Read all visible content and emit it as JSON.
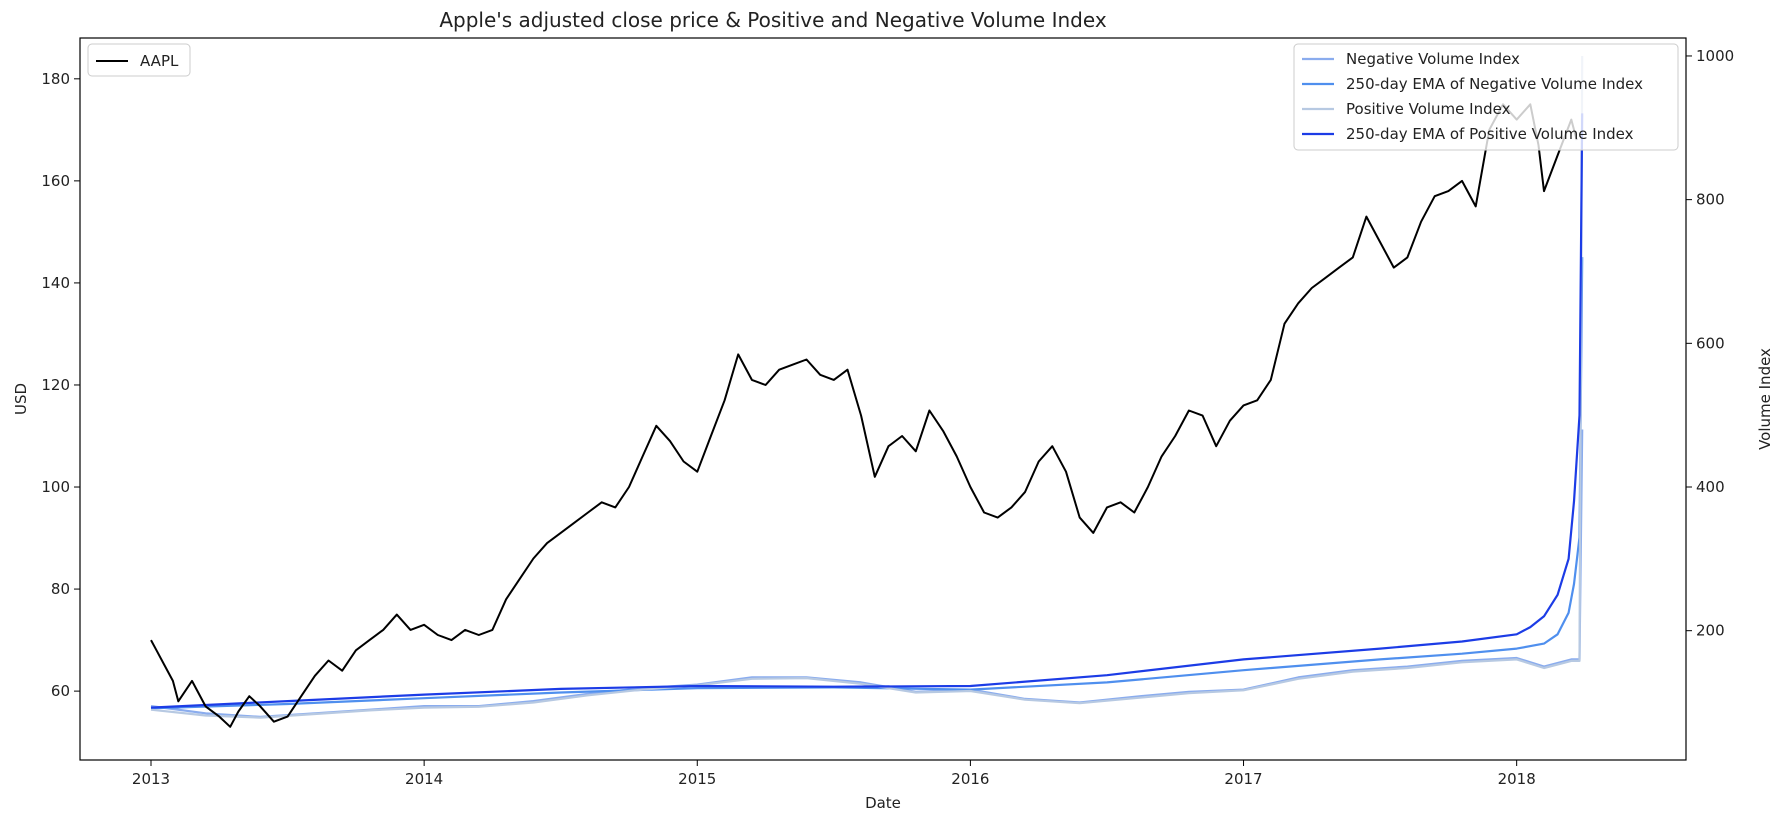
{
  "chart_data": {
    "type": "line",
    "title": "Apple's adjusted close price & Positive and Negative Volume Index",
    "xlabel": "Date",
    "ylabel": "USD",
    "y2label": "Volume Index",
    "xlim": [
      2012.74,
      2018.62
    ],
    "ylim": [
      46.5,
      188
    ],
    "y2lim": [
      20,
      1025
    ],
    "x_ticks": [
      2013,
      2014,
      2015,
      2016,
      2017,
      2018
    ],
    "x_tick_labels": [
      "2013",
      "2014",
      "2015",
      "2016",
      "2017",
      "2018"
    ],
    "y_ticks": [
      60,
      80,
      100,
      120,
      140,
      160,
      180
    ],
    "y2_ticks": [
      200,
      400,
      600,
      800,
      1000
    ],
    "grid": false,
    "legend_left": {
      "placement": "upper-left",
      "entries": [
        "AAPL"
      ]
    },
    "legend_right": {
      "placement": "upper-right",
      "entries": [
        "Negative Volume Index",
        "250-day EMA of Negative Volume Index",
        "Positive Volume Index",
        "250-day EMA of Positive Volume Index"
      ]
    },
    "series": [
      {
        "name": "AAPL",
        "axis": "left",
        "color": "#000000",
        "x": [
          2013.0,
          2013.02,
          2013.05,
          2013.08,
          2013.1,
          2013.15,
          2013.2,
          2013.25,
          2013.29,
          2013.32,
          2013.36,
          2013.4,
          2013.45,
          2013.5,
          2013.55,
          2013.6,
          2013.65,
          2013.7,
          2013.75,
          2013.8,
          2013.85,
          2013.9,
          2013.95,
          2014.0,
          2014.05,
          2014.1,
          2014.15,
          2014.2,
          2014.25,
          2014.3,
          2014.35,
          2014.4,
          2014.45,
          2014.5,
          2014.55,
          2014.6,
          2014.65,
          2014.7,
          2014.75,
          2014.8,
          2014.85,
          2014.9,
          2014.95,
          2015.0,
          2015.05,
          2015.1,
          2015.15,
          2015.2,
          2015.25,
          2015.3,
          2015.35,
          2015.4,
          2015.45,
          2015.5,
          2015.55,
          2015.6,
          2015.65,
          2015.7,
          2015.75,
          2015.8,
          2015.85,
          2015.9,
          2015.95,
          2016.0,
          2016.05,
          2016.1,
          2016.15,
          2016.2,
          2016.25,
          2016.3,
          2016.35,
          2016.4,
          2016.45,
          2016.5,
          2016.55,
          2016.6,
          2016.65,
          2016.7,
          2016.75,
          2016.8,
          2016.85,
          2016.9,
          2016.95,
          2017.0,
          2017.05,
          2017.1,
          2017.15,
          2017.2,
          2017.25,
          2017.3,
          2017.35,
          2017.4,
          2017.45,
          2017.5,
          2017.55,
          2017.6,
          2017.65,
          2017.7,
          2017.75,
          2017.8,
          2017.85,
          2017.9,
          2017.95,
          2018.0,
          2018.05,
          2018.08,
          2018.1,
          2018.15,
          2018.2,
          2018.22
        ],
        "y": [
          70,
          68,
          65,
          62,
          58,
          62,
          57,
          55,
          53,
          56,
          59,
          57,
          54,
          55,
          59,
          63,
          66,
          64,
          68,
          70,
          72,
          75,
          72,
          73,
          71,
          70,
          72,
          71,
          72,
          78,
          82,
          86,
          89,
          91,
          93,
          95,
          97,
          96,
          100,
          106,
          112,
          109,
          105,
          103,
          110,
          117,
          126,
          121,
          120,
          123,
          124,
          125,
          122,
          121,
          123,
          114,
          102,
          108,
          110,
          107,
          115,
          111,
          106,
          100,
          95,
          94,
          96,
          99,
          105,
          108,
          103,
          94,
          91,
          96,
          97,
          95,
          100,
          106,
          110,
          115,
          114,
          108,
          113,
          116,
          117,
          121,
          132,
          136,
          139,
          141,
          143,
          145,
          153,
          148,
          143,
          145,
          152,
          157,
          158,
          160,
          155,
          170,
          175,
          172,
          175,
          167,
          158,
          165,
          172,
          168
        ]
      },
      {
        "name": "Negative Volume Index",
        "axis": "right",
        "color": "#8aacee",
        "x": [
          2013.0,
          2013.2,
          2013.4,
          2013.6,
          2013.8,
          2014.0,
          2014.2,
          2014.4,
          2014.6,
          2014.8,
          2015.0,
          2015.2,
          2015.4,
          2015.6,
          2015.8,
          2016.0,
          2016.2,
          2016.4,
          2016.6,
          2016.8,
          2017.0,
          2017.2,
          2017.4,
          2017.6,
          2017.8,
          2018.0,
          2018.1,
          2018.2,
          2018.23,
          2018.24
        ],
        "y": [
          95,
          85,
          80,
          85,
          90,
          95,
          95,
          102,
          112,
          120,
          125,
          135,
          135,
          128,
          115,
          118,
          105,
          100,
          108,
          115,
          118,
          135,
          145,
          150,
          158,
          162,
          150,
          160,
          160,
          480
        ]
      },
      {
        "name": "250-day EMA of Negative Volume Index",
        "axis": "right",
        "color": "#4f8fee",
        "x": [
          2013.0,
          2013.5,
          2014.0,
          2014.5,
          2015.0,
          2015.5,
          2016.0,
          2016.5,
          2017.0,
          2017.5,
          2017.8,
          2018.0,
          2018.1,
          2018.15,
          2018.19,
          2018.21,
          2018.23,
          2018.24
        ],
        "y": [
          92,
          98,
          106,
          114,
          120,
          121,
          118,
          128,
          145,
          160,
          168,
          175,
          182,
          195,
          225,
          265,
          330,
          720
        ]
      },
      {
        "name": "Positive Volume Index",
        "axis": "right",
        "color": "#b7c9e2",
        "x": [
          2013.0,
          2013.2,
          2013.4,
          2013.6,
          2013.8,
          2014.0,
          2014.2,
          2014.4,
          2014.6,
          2014.8,
          2015.0,
          2015.2,
          2015.4,
          2015.6,
          2015.8,
          2016.0,
          2016.2,
          2016.4,
          2016.6,
          2016.8,
          2017.0,
          2017.2,
          2017.4,
          2017.6,
          2017.8,
          2018.0,
          2018.1,
          2018.2,
          2018.23,
          2018.24
        ],
        "y": [
          90,
          82,
          79,
          84,
          89,
          93,
          94,
          100,
          110,
          118,
          124,
          133,
          134,
          126,
          114,
          116,
          104,
          99,
          106,
          113,
          117,
          133,
          143,
          148,
          156,
          160,
          148,
          158,
          158,
          1000
        ]
      },
      {
        "name": "250-day EMA of Positive Volume Index",
        "axis": "right",
        "color": "#1c3ce6",
        "x": [
          2013.0,
          2013.5,
          2014.0,
          2014.5,
          2015.0,
          2015.5,
          2016.0,
          2016.5,
          2017.0,
          2017.5,
          2017.8,
          2018.0,
          2018.05,
          2018.1,
          2018.15,
          2018.19,
          2018.21,
          2018.23,
          2018.24
        ],
        "y": [
          93,
          102,
          111,
          119,
          123,
          122,
          123,
          138,
          160,
          175,
          185,
          195,
          205,
          220,
          250,
          300,
          380,
          500,
          920
        ]
      }
    ]
  }
}
